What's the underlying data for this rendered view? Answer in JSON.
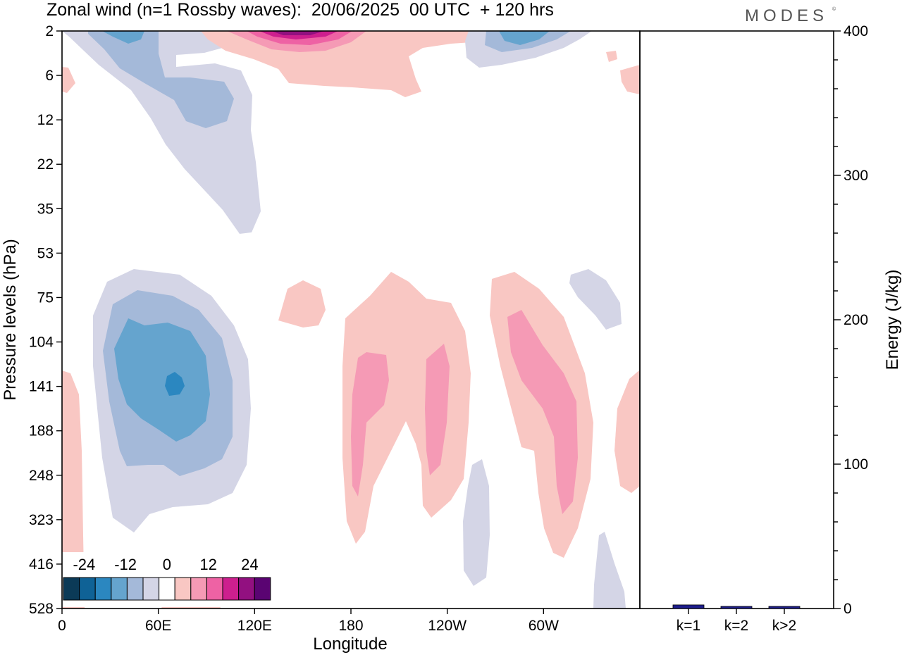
{
  "title": "Zonal wind (n=1 Rossby waves):  20/06/2025  00 UTC  + 120 hrs",
  "brand": "MODES",
  "brand_mark": "©",
  "chart_data": [
    {
      "type": "heatmap",
      "title": "Zonal wind (n=1 Rossby waves):  20/06/2025  00 UTC  + 120 hrs",
      "xlabel": "Longitude",
      "ylabel": "Pressure levels (hPa)",
      "x_ticks": [
        "0",
        "60E",
        "120E",
        "180",
        "120W",
        "60W"
      ],
      "y_ticks": [
        "2",
        "6",
        "12",
        "22",
        "35",
        "53",
        "75",
        "104",
        "141",
        "188",
        "248",
        "323",
        "416",
        "528"
      ],
      "colorbar": {
        "labels": [
          "-24",
          "-12",
          "0",
          "12",
          "24"
        ],
        "levels": [
          -30,
          -25,
          -20,
          -15,
          -10,
          -5,
          0,
          5,
          10,
          15,
          20,
          25,
          30
        ],
        "colors": [
          "#0b3a57",
          "#0f6296",
          "#2b87c0",
          "#65a4ce",
          "#a4b9d9",
          "#d4d5e6",
          "#ffffff",
          "#f9c7c3",
          "#f59ab5",
          "#ee62a4",
          "#cd1f8e",
          "#921080",
          "#5a0472"
        ]
      },
      "grid": false,
      "legend": "bottom-left"
    },
    {
      "type": "bar",
      "ylabel": "Energy (J/kg)",
      "categories": [
        "k=1",
        "k=2",
        "k>2"
      ],
      "values": [
        2,
        1,
        1
      ],
      "ylim": [
        0,
        400
      ],
      "y_ticks": [
        "0",
        "100",
        "200",
        "300",
        "400"
      ],
      "color": "#1e1e8c"
    }
  ]
}
